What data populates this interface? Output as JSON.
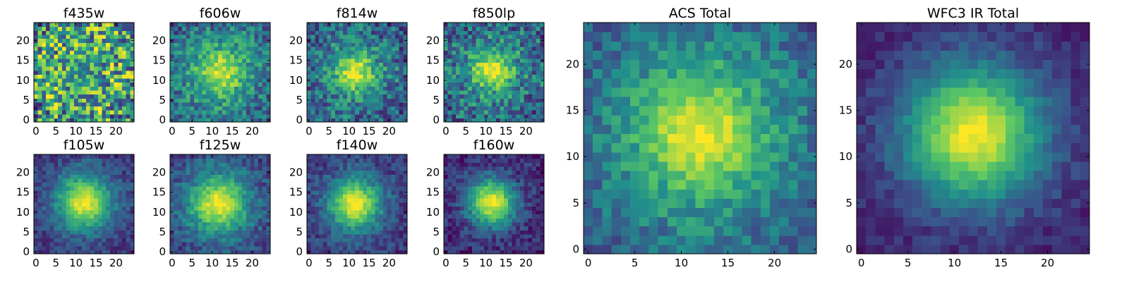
{
  "figure": {
    "description_type": "grid of galaxy image cutouts",
    "colormap": [
      "#440154",
      "#3b528b",
      "#21918c",
      "#5ec962",
      "#fde725"
    ]
  },
  "chart_data": [
    {
      "type": "heatmap",
      "title": "f435w",
      "grid": [
        25,
        25
      ],
      "xlim": [
        0,
        24
      ],
      "ylim": [
        0,
        24
      ],
      "xticks": [
        "0",
        "5",
        "10",
        "15",
        "20"
      ],
      "yticks": [
        "0",
        "5",
        "10",
        "15",
        "20"
      ],
      "center": [
        12,
        12
      ],
      "peak": 0.55,
      "width": 4,
      "noise": 0.45,
      "background": 0.62
    },
    {
      "type": "heatmap",
      "title": "f606w",
      "grid": [
        25,
        25
      ],
      "xlim": [
        0,
        24
      ],
      "ylim": [
        0,
        24
      ],
      "xticks": [
        "0",
        "5",
        "10",
        "15",
        "20"
      ],
      "yticks": [
        "0",
        "5",
        "10",
        "15",
        "20"
      ],
      "center": [
        12,
        12
      ],
      "peak": 0.92,
      "width": 4.5,
      "noise": 0.22,
      "background": 0.42
    },
    {
      "type": "heatmap",
      "title": "f814w",
      "grid": [
        25,
        25
      ],
      "xlim": [
        0,
        24
      ],
      "ylim": [
        0,
        24
      ],
      "xticks": [
        "0",
        "5",
        "10",
        "15",
        "20"
      ],
      "yticks": [
        "0",
        "5",
        "10",
        "15",
        "20"
      ],
      "center": [
        11.5,
        12
      ],
      "peak": 0.95,
      "width": 3.8,
      "noise": 0.24,
      "background": 0.38
    },
    {
      "type": "heatmap",
      "title": "f850lp",
      "grid": [
        25,
        25
      ],
      "xlim": [
        0,
        24
      ],
      "ylim": [
        0,
        24
      ],
      "xticks": [
        "0",
        "5",
        "10",
        "15",
        "20"
      ],
      "yticks": [
        "0",
        "5",
        "10",
        "15",
        "20"
      ],
      "center": [
        11.5,
        12.5
      ],
      "peak": 0.95,
      "width": 3.8,
      "noise": 0.26,
      "background": 0.4
    },
    {
      "type": "heatmap",
      "title": "f105w",
      "grid": [
        25,
        25
      ],
      "xlim": [
        0,
        24
      ],
      "ylim": [
        0,
        24
      ],
      "xticks": [
        "0",
        "5",
        "10",
        "15",
        "20"
      ],
      "yticks": [
        "0",
        "5",
        "10",
        "15",
        "20"
      ],
      "center": [
        12,
        12.5
      ],
      "peak": 0.98,
      "width": 4.6,
      "noise": 0.12,
      "background": 0.22
    },
    {
      "type": "heatmap",
      "title": "f125w",
      "grid": [
        25,
        25
      ],
      "xlim": [
        0,
        24
      ],
      "ylim": [
        0,
        24
      ],
      "xticks": [
        "0",
        "5",
        "10",
        "15",
        "20"
      ],
      "yticks": [
        "0",
        "5",
        "10",
        "15",
        "20"
      ],
      "center": [
        11.5,
        12
      ],
      "peak": 0.98,
      "width": 4.8,
      "noise": 0.14,
      "background": 0.28
    },
    {
      "type": "heatmap",
      "title": "f140w",
      "grid": [
        25,
        25
      ],
      "xlim": [
        0,
        24
      ],
      "ylim": [
        0,
        24
      ],
      "xticks": [
        "0",
        "5",
        "10",
        "15",
        "20"
      ],
      "yticks": [
        "0",
        "5",
        "10",
        "15",
        "20"
      ],
      "center": [
        11.5,
        12
      ],
      "peak": 0.98,
      "width": 4.4,
      "noise": 0.13,
      "background": 0.22
    },
    {
      "type": "heatmap",
      "title": "f160w",
      "grid": [
        25,
        25
      ],
      "xlim": [
        0,
        24
      ],
      "ylim": [
        0,
        24
      ],
      "xticks": [
        "0",
        "5",
        "10",
        "15",
        "20"
      ],
      "yticks": [
        "0",
        "5",
        "10",
        "15",
        "20"
      ],
      "center": [
        11.5,
        12.5
      ],
      "peak": 0.98,
      "width": 4.2,
      "noise": 0.13,
      "background": 0.14
    },
    {
      "type": "heatmap",
      "title": "ACS Total",
      "grid": [
        25,
        25
      ],
      "xlim": [
        0,
        24
      ],
      "ylim": [
        0,
        24
      ],
      "xticks": [
        "0",
        "5",
        "10",
        "15",
        "20"
      ],
      "yticks": [
        "0",
        "5",
        "10",
        "15",
        "20"
      ],
      "center": [
        12,
        12.5
      ],
      "peak": 0.99,
      "width": 4.8,
      "noise": 0.15,
      "background": 0.4
    },
    {
      "type": "heatmap",
      "title": "WFC3 IR Total",
      "grid": [
        25,
        25
      ],
      "xlim": [
        0,
        24
      ],
      "ylim": [
        0,
        24
      ],
      "xticks": [
        "0",
        "5",
        "10",
        "15",
        "20"
      ],
      "yticks": [
        "0",
        "5",
        "10",
        "15",
        "20"
      ],
      "center": [
        12,
        12.5
      ],
      "peak": 0.99,
      "width": 5.0,
      "noise": 0.08,
      "background": 0.14
    }
  ]
}
